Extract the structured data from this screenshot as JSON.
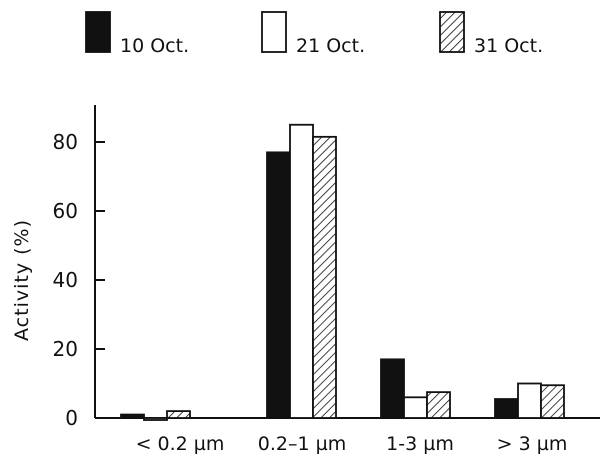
{
  "chart_data": {
    "type": "bar",
    "title": "",
    "xlabel": "",
    "ylabel": "Activity (%)",
    "ylim": [
      0,
      90
    ],
    "yticks": [
      0,
      20,
      40,
      60,
      80
    ],
    "grid": false,
    "legend_position": "top",
    "categories": [
      "< 0.2 µm",
      "0.2–1 µm",
      "1-3 µm",
      "> 3 µm"
    ],
    "series": [
      {
        "name": "10 Oct.",
        "fill": "solid",
        "color": "#111111",
        "values": [
          1,
          77,
          17,
          5.5
        ]
      },
      {
        "name": "21 Oct.",
        "fill": "open",
        "color": "#ffffff",
        "values": [
          -0.5,
          85,
          6,
          10
        ]
      },
      {
        "name": "31 Oct.",
        "fill": "hatched",
        "color": "#111111",
        "values": [
          2,
          81.5,
          7.5,
          9.5
        ]
      }
    ]
  }
}
